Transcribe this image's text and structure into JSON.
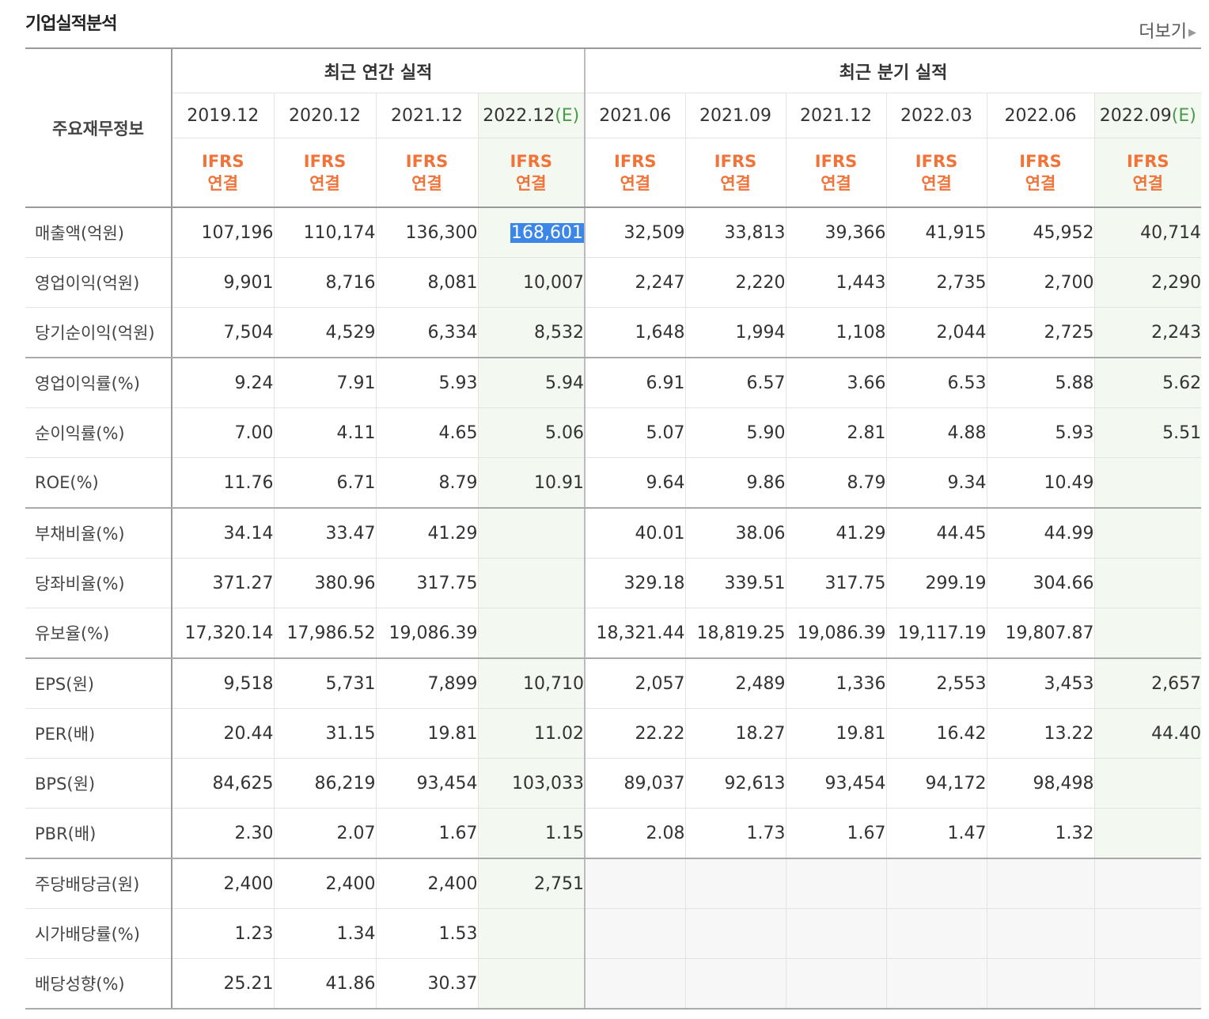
{
  "header": {
    "title": "기업실적분석",
    "more_label": "더보기"
  },
  "table": {
    "corner_label": "주요재무정보",
    "annual_group": "최근 연간 실적",
    "quarter_group": "최근 분기 실적",
    "columns": [
      {
        "date": "2019.12",
        "est": "",
        "std1": "IFRS",
        "std2": "연결"
      },
      {
        "date": "2020.12",
        "est": "",
        "std1": "IFRS",
        "std2": "연결"
      },
      {
        "date": "2021.12",
        "est": "",
        "std1": "IFRS",
        "std2": "연결"
      },
      {
        "date": "2022.12",
        "est": "(E)",
        "std1": "IFRS",
        "std2": "연결"
      },
      {
        "date": "2021.06",
        "est": "",
        "std1": "IFRS",
        "std2": "연결"
      },
      {
        "date": "2021.09",
        "est": "",
        "std1": "IFRS",
        "std2": "연결"
      },
      {
        "date": "2021.12",
        "est": "",
        "std1": "IFRS",
        "std2": "연결"
      },
      {
        "date": "2022.03",
        "est": "",
        "std1": "IFRS",
        "std2": "연결"
      },
      {
        "date": "2022.06",
        "est": "",
        "std1": "IFRS",
        "std2": "연결"
      },
      {
        "date": "2022.09",
        "est": "(E)",
        "std1": "IFRS",
        "std2": "연결"
      }
    ],
    "rows": [
      {
        "label": "매출액(억원)",
        "values": [
          "107,196",
          "110,174",
          "136,300",
          "168,601",
          "32,509",
          "33,813",
          "39,366",
          "41,915",
          "45,952",
          "40,714"
        ]
      },
      {
        "label": "영업이익(억원)",
        "values": [
          "9,901",
          "8,716",
          "8,081",
          "10,007",
          "2,247",
          "2,220",
          "1,443",
          "2,735",
          "2,700",
          "2,290"
        ]
      },
      {
        "label": "당기순이익(억원)",
        "values": [
          "7,504",
          "4,529",
          "6,334",
          "8,532",
          "1,648",
          "1,994",
          "1,108",
          "2,044",
          "2,725",
          "2,243"
        ]
      },
      {
        "label": "영업이익률(%)",
        "values": [
          "9.24",
          "7.91",
          "5.93",
          "5.94",
          "6.91",
          "6.57",
          "3.66",
          "6.53",
          "5.88",
          "5.62"
        ]
      },
      {
        "label": "순이익률(%)",
        "values": [
          "7.00",
          "4.11",
          "4.65",
          "5.06",
          "5.07",
          "5.90",
          "2.81",
          "4.88",
          "5.93",
          "5.51"
        ]
      },
      {
        "label": "ROE(%)",
        "values": [
          "11.76",
          "6.71",
          "8.79",
          "10.91",
          "9.64",
          "9.86",
          "8.79",
          "9.34",
          "10.49",
          ""
        ]
      },
      {
        "label": "부채비율(%)",
        "values": [
          "34.14",
          "33.47",
          "41.29",
          "",
          "40.01",
          "38.06",
          "41.29",
          "44.45",
          "44.99",
          ""
        ]
      },
      {
        "label": "당좌비율(%)",
        "values": [
          "371.27",
          "380.96",
          "317.75",
          "",
          "329.18",
          "339.51",
          "317.75",
          "299.19",
          "304.66",
          ""
        ]
      },
      {
        "label": "유보율(%)",
        "values": [
          "17,320.14",
          "17,986.52",
          "19,086.39",
          "",
          "18,321.44",
          "18,819.25",
          "19,086.39",
          "19,117.19",
          "19,807.87",
          ""
        ]
      },
      {
        "label": "EPS(원)",
        "values": [
          "9,518",
          "5,731",
          "7,899",
          "10,710",
          "2,057",
          "2,489",
          "1,336",
          "2,553",
          "3,453",
          "2,657"
        ]
      },
      {
        "label": "PER(배)",
        "values": [
          "20.44",
          "31.15",
          "19.81",
          "11.02",
          "22.22",
          "18.27",
          "19.81",
          "16.42",
          "13.22",
          "44.40"
        ]
      },
      {
        "label": "BPS(원)",
        "values": [
          "84,625",
          "86,219",
          "93,454",
          "103,033",
          "89,037",
          "92,613",
          "93,454",
          "94,172",
          "98,498",
          ""
        ]
      },
      {
        "label": "PBR(배)",
        "values": [
          "2.30",
          "2.07",
          "1.67",
          "1.15",
          "2.08",
          "1.73",
          "1.67",
          "1.47",
          "1.32",
          ""
        ]
      },
      {
        "label": "주당배당금(원)",
        "values": [
          "2,400",
          "2,400",
          "2,400",
          "2,751",
          "",
          "",
          "",
          "",
          "",
          ""
        ]
      },
      {
        "label": "시가배당률(%)",
        "values": [
          "1.23",
          "1.34",
          "1.53",
          "",
          "",
          "",
          "",
          "",
          "",
          ""
        ]
      },
      {
        "label": "배당성향(%)",
        "values": [
          "25.21",
          "41.86",
          "30.37",
          "",
          "",
          "",
          "",
          "",
          "",
          ""
        ]
      }
    ]
  }
}
